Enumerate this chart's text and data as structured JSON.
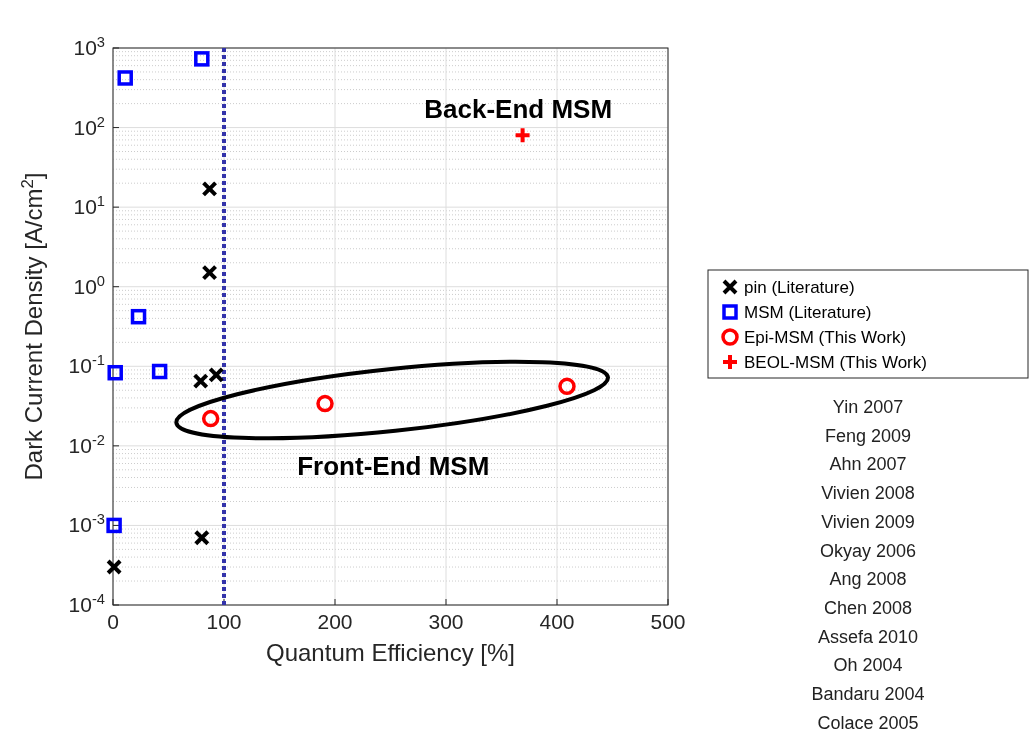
{
  "chart_data": {
    "type": "scatter",
    "xlabel": "Quantum Efficiency [%]",
    "ylabel": "Dark Current Density [A/cm$^{2}$]",
    "log": "y",
    "grid": true,
    "legend": "right",
    "xlim": [
      0,
      500
    ],
    "xticks": [
      0,
      100,
      200,
      300,
      400,
      500
    ],
    "ylim": [
      0.0001,
      1000
    ],
    "yticks": [
      {
        "value": 0.0001,
        "label": "10$^{-4}$"
      },
      {
        "value": 0.001,
        "label": "10$^{-3}$"
      },
      {
        "value": 0.01,
        "label": "10$^{-2}$"
      },
      {
        "value": 0.1,
        "label": "10$^{-1}$"
      },
      {
        "value": 1,
        "label": "10$^{0}$"
      },
      {
        "value": 10,
        "label": "10$^{1}$"
      },
      {
        "value": 100,
        "label": "10$^{2}$"
      },
      {
        "value": 1000,
        "label": "10$^{3}$"
      }
    ],
    "series": [
      {
        "name": "pin (Literature)",
        "color": "#000000",
        "marker": "x",
        "x": [
          87,
          87,
          79,
          93,
          80,
          1
        ],
        "values": [
          17,
          1.5,
          0.065,
          0.078,
          0.0007,
          0.0003
        ]
      },
      {
        "name": "MSM (Literature)",
        "color": "#0000ff",
        "marker": "square",
        "x": [
          11,
          80,
          23,
          2,
          42,
          1
        ],
        "values": [
          420,
          730,
          0.42,
          0.083,
          0.086,
          0.001
        ]
      },
      {
        "name": "Epi-MSM (This Work)",
        "color": "#ff0000",
        "marker": "circle",
        "x": [
          88,
          191,
          409
        ],
        "values": [
          0.022,
          0.034,
          0.056
        ]
      },
      {
        "name": "BEOL-MSM (This Work)",
        "color": "#ff0000",
        "marker": "cross",
        "x": [
          369
        ],
        "values": [
          80
        ]
      }
    ],
    "ref_lines": [
      {
        "axis": "x",
        "value": 100,
        "color": "#3333aa",
        "line_style": "dotted"
      }
    ],
    "annotations": [
      "Back-End MSM",
      "Front-End MSM",
      "Yin 2007",
      "Feng 2009",
      "Ahn 2007",
      "Vivien 2008",
      "Vivien 2009",
      "Okyay 2006",
      "Ang 2008",
      "Chen 2008",
      "Assefa 2010",
      "Oh 2004",
      "Bandaru 2004",
      "Colace 2005"
    ]
  }
}
